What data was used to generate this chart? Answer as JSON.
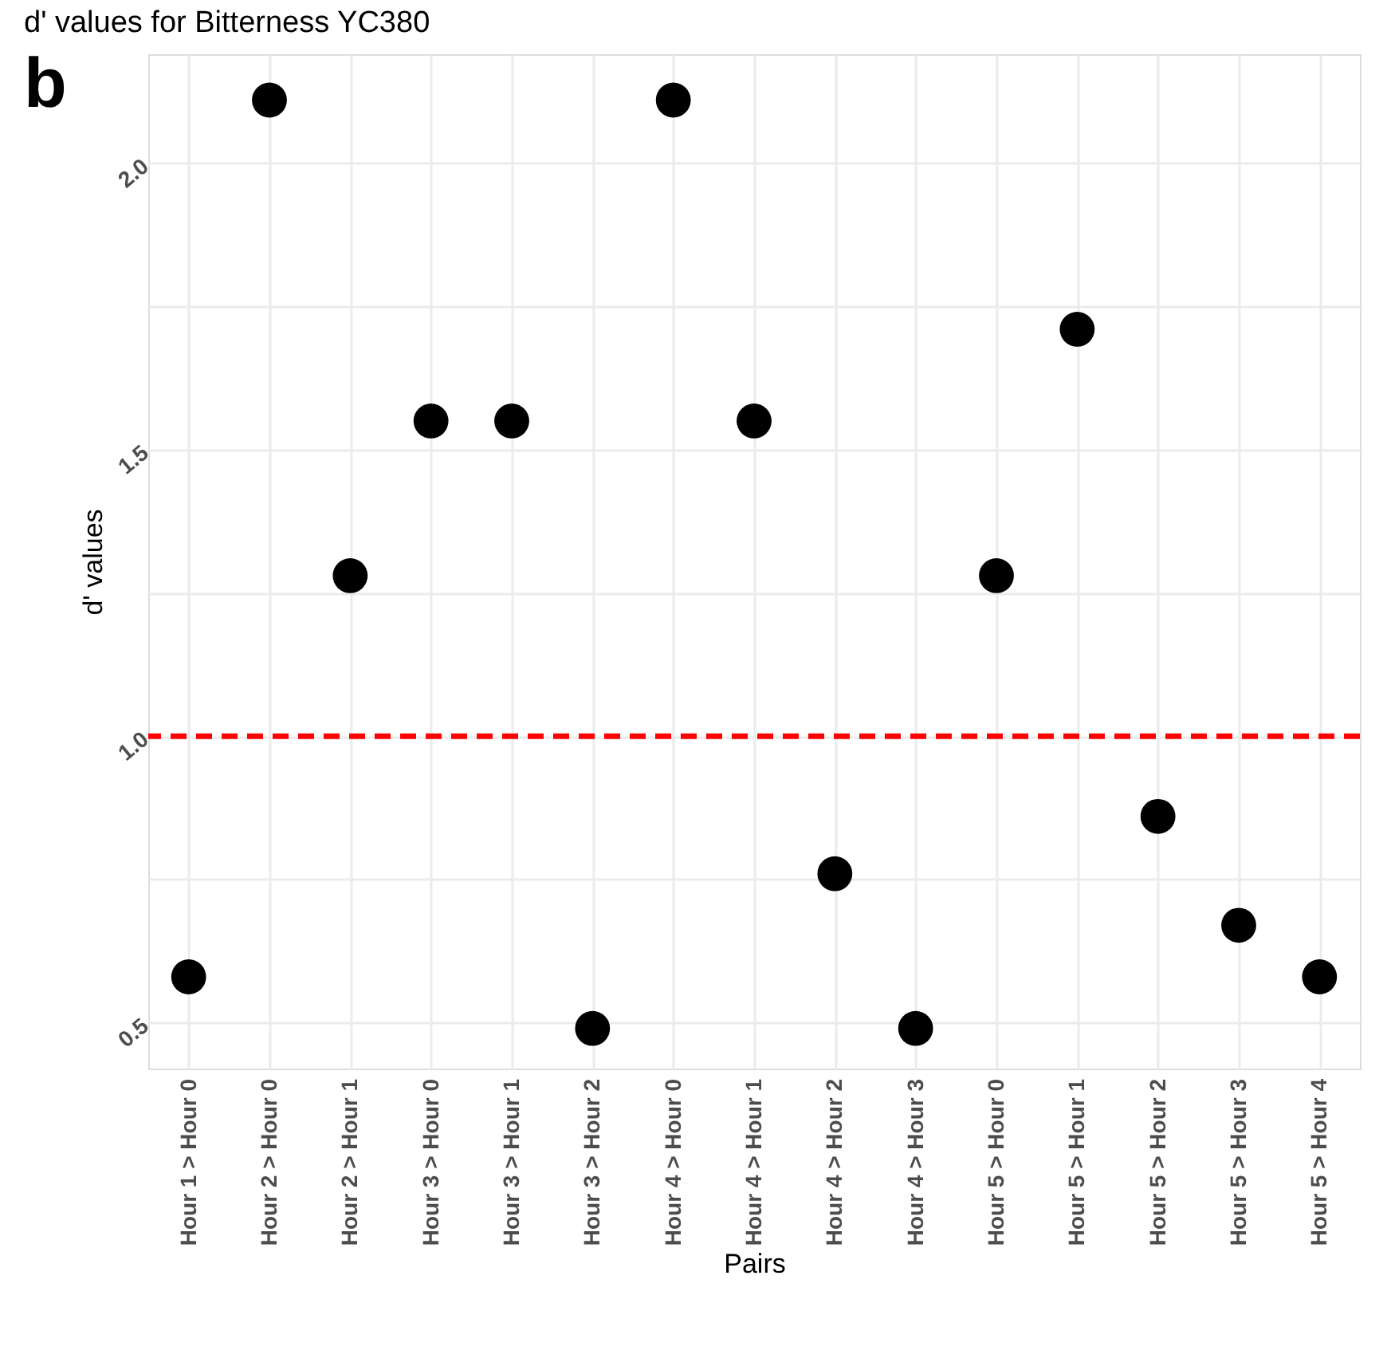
{
  "chart_data": {
    "type": "scatter",
    "title": "d' values for Bitterness YC380",
    "xlabel": "Pairs",
    "ylabel": "d' values",
    "annotations": [
      "b"
    ],
    "categories": [
      "Hour 1 > Hour 0",
      "Hour 2 > Hour 0",
      "Hour 2 > Hour 1",
      "Hour 3 > Hour 0",
      "Hour 3 > Hour 1",
      "Hour 3 > Hour 2",
      "Hour 4 > Hour 0",
      "Hour 4 > Hour 1",
      "Hour 4 > Hour 2",
      "Hour 4 > Hour 3",
      "Hour 5 > Hour 0",
      "Hour 5 > Hour 1",
      "Hour 5 > Hour 2",
      "Hour 5 > Hour 3",
      "Hour 5 > Hour 4"
    ],
    "series": [
      {
        "color": "#000000",
        "values": [
          0.58,
          2.11,
          1.28,
          1.55,
          1.55,
          0.49,
          2.11,
          1.55,
          0.76,
          0.49,
          1.28,
          1.71,
          0.86,
          0.67,
          0.58
        ]
      }
    ],
    "ylim": [
      0.42,
      2.19
    ],
    "yticks": [
      {
        "value": 0.5,
        "label": "0.5"
      },
      {
        "value": 0.75,
        "label": null
      },
      {
        "value": 1,
        "label": "1.0"
      },
      {
        "value": 1.25,
        "label": null
      },
      {
        "value": 1.5,
        "label": "1.5"
      },
      {
        "value": 1.75,
        "label": null
      },
      {
        "value": 2,
        "label": "2.0"
      }
    ],
    "ref_lines": [
      {
        "axis": "y",
        "value": 1,
        "color": "#ff0000",
        "line_style": "dashed"
      }
    ],
    "grid": true
  }
}
